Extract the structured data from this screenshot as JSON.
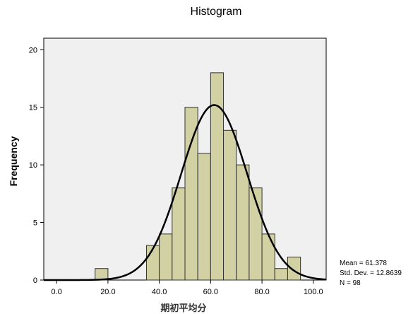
{
  "chart_data": {
    "type": "bar",
    "title": "Histogram",
    "xlabel": "期初平均分",
    "ylabel": "Frequency",
    "xlim": [
      -5,
      105
    ],
    "ylim": [
      0,
      21
    ],
    "x_ticks": [
      0,
      20,
      40,
      60,
      80,
      100
    ],
    "x_tick_labels": [
      "0.0",
      "20.0",
      "40.0",
      "60.0",
      "80.0",
      "100.0"
    ],
    "y_ticks": [
      0,
      5,
      10,
      15,
      20
    ],
    "y_tick_labels": [
      "0",
      "5",
      "10",
      "15",
      "20"
    ],
    "bin_width": 5,
    "bins": [
      {
        "start": 15,
        "end": 20,
        "count": 1
      },
      {
        "start": 35,
        "end": 40,
        "count": 3
      },
      {
        "start": 40,
        "end": 45,
        "count": 4
      },
      {
        "start": 45,
        "end": 50,
        "count": 8
      },
      {
        "start": 50,
        "end": 55,
        "count": 15
      },
      {
        "start": 55,
        "end": 60,
        "count": 11
      },
      {
        "start": 60,
        "end": 65,
        "count": 18
      },
      {
        "start": 65,
        "end": 70,
        "count": 13
      },
      {
        "start": 70,
        "end": 75,
        "count": 10
      },
      {
        "start": 75,
        "end": 80,
        "count": 8
      },
      {
        "start": 80,
        "end": 85,
        "count": 4
      },
      {
        "start": 85,
        "end": 90,
        "count": 1
      },
      {
        "start": 90,
        "end": 95,
        "count": 2
      }
    ],
    "normal_curve": {
      "mean": 61.378,
      "std_dev": 12.8639,
      "n": 98
    },
    "stats_text": [
      "Mean = 61.378",
      "Std. Dev. = 12.8639",
      "N = 98"
    ],
    "grid": false,
    "colors": {
      "bar_fill": "#d2d1a4",
      "bar_stroke": "#333333",
      "curve": "#000000",
      "plot_background": "#f0f0f0"
    }
  }
}
